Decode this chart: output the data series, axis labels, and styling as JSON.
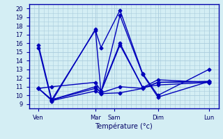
{
  "title": "",
  "xlabel": "Température (°c)",
  "ylabel": "",
  "background_color": "#d4eef4",
  "grid_color": "#aaccdd",
  "line_color": "#0000bb",
  "ylim": [
    8.5,
    20.5
  ],
  "yticks": [
    9,
    10,
    11,
    12,
    13,
    14,
    15,
    16,
    17,
    18,
    19,
    20
  ],
  "xlim": [
    0,
    10
  ],
  "xtick_positions": [
    0.5,
    3.5,
    4.5,
    6.8,
    9.5
  ],
  "xtick_labels": [
    "Ven",
    "Mar",
    "Sam",
    "Dim",
    "Lun"
  ],
  "series_x": [
    [
      0.5,
      1.2,
      3.5,
      3.8,
      4.8,
      6.0,
      6.8,
      9.5
    ],
    [
      0.5,
      1.2,
      3.5,
      3.8,
      4.8,
      6.0,
      6.8,
      9.5
    ],
    [
      0.5,
      1.2,
      3.5,
      3.8,
      4.8,
      6.0,
      6.8,
      9.5
    ],
    [
      0.5,
      1.2,
      3.5,
      3.8,
      4.8,
      6.0,
      6.8,
      9.5
    ],
    [
      0.5,
      1.2,
      3.5,
      3.8,
      4.8,
      6.0,
      6.8,
      9.5
    ],
    [
      0.5,
      1.2,
      3.5,
      3.8,
      4.8,
      6.0,
      6.8,
      9.5
    ]
  ],
  "series_y": [
    [
      15.8,
      9.5,
      17.5,
      15.5,
      19.8,
      12.5,
      10.0,
      13.0
    ],
    [
      15.5,
      9.3,
      17.6,
      10.3,
      19.2,
      12.4,
      9.8,
      11.6
    ],
    [
      10.8,
      11.0,
      11.5,
      10.5,
      16.0,
      10.9,
      11.2,
      11.5
    ],
    [
      10.8,
      9.5,
      10.8,
      10.4,
      15.8,
      10.9,
      11.8,
      11.5
    ],
    [
      10.8,
      9.5,
      11.0,
      10.3,
      11.0,
      10.8,
      11.5,
      11.6
    ],
    [
      10.8,
      9.4,
      10.5,
      10.2,
      10.3,
      10.8,
      11.5,
      11.6
    ]
  ],
  "marker": "D",
  "marker_size": 2.5,
  "linewidth": 1.0
}
